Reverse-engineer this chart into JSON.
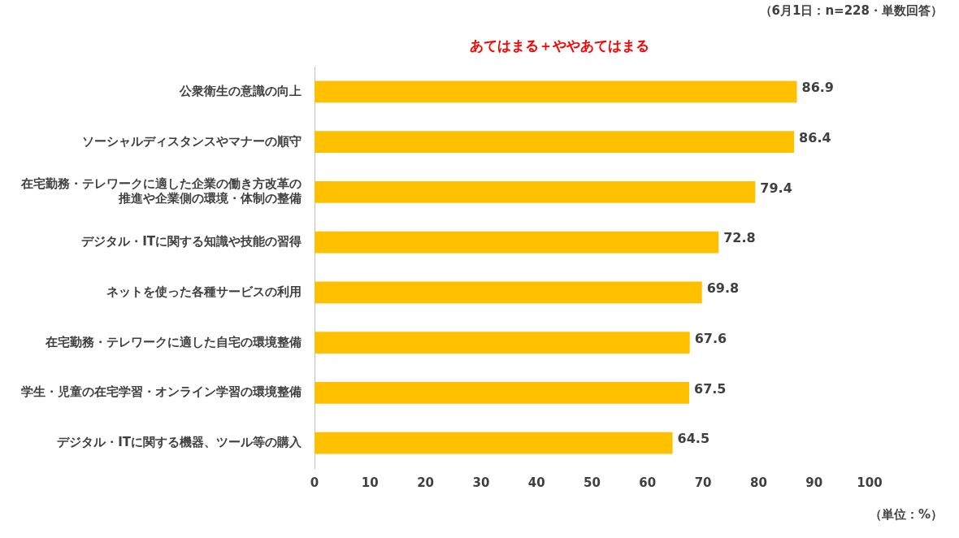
{
  "chart_data": {
    "type": "bar",
    "orientation": "horizontal",
    "title": "あてはまる＋ややあてはまる",
    "subtitle": "（6月1日：n=228・単数回答）",
    "xlabel": "（単位：%）",
    "categories": [
      "公衆衛生の意識の向上",
      "ソーシャルディスタンスやマナーの順守",
      "在宅勤務・テレワークに適した企業の働き方改革の推進や企業側の環境・体制の整備",
      "デジタル・ITに関する知識や技能の習得",
      "ネットを使った各種サービスの利用",
      "在宅勤務・テレワークに適した自宅の環境整備",
      "学生・児童の在宅学習・オンライン学習の環境整備",
      "デジタル・ITに関する機器、ツール等の購入"
    ],
    "values": [
      86.9,
      86.4,
      79.4,
      72.8,
      69.8,
      67.6,
      67.5,
      64.5
    ],
    "color": "#ffc000",
    "xlim": [
      0,
      100
    ],
    "xticks": [
      0,
      10,
      20,
      30,
      40,
      50,
      60,
      70,
      80,
      90,
      100
    ],
    "grid": false,
    "legend": false,
    "data_labels": true
  }
}
